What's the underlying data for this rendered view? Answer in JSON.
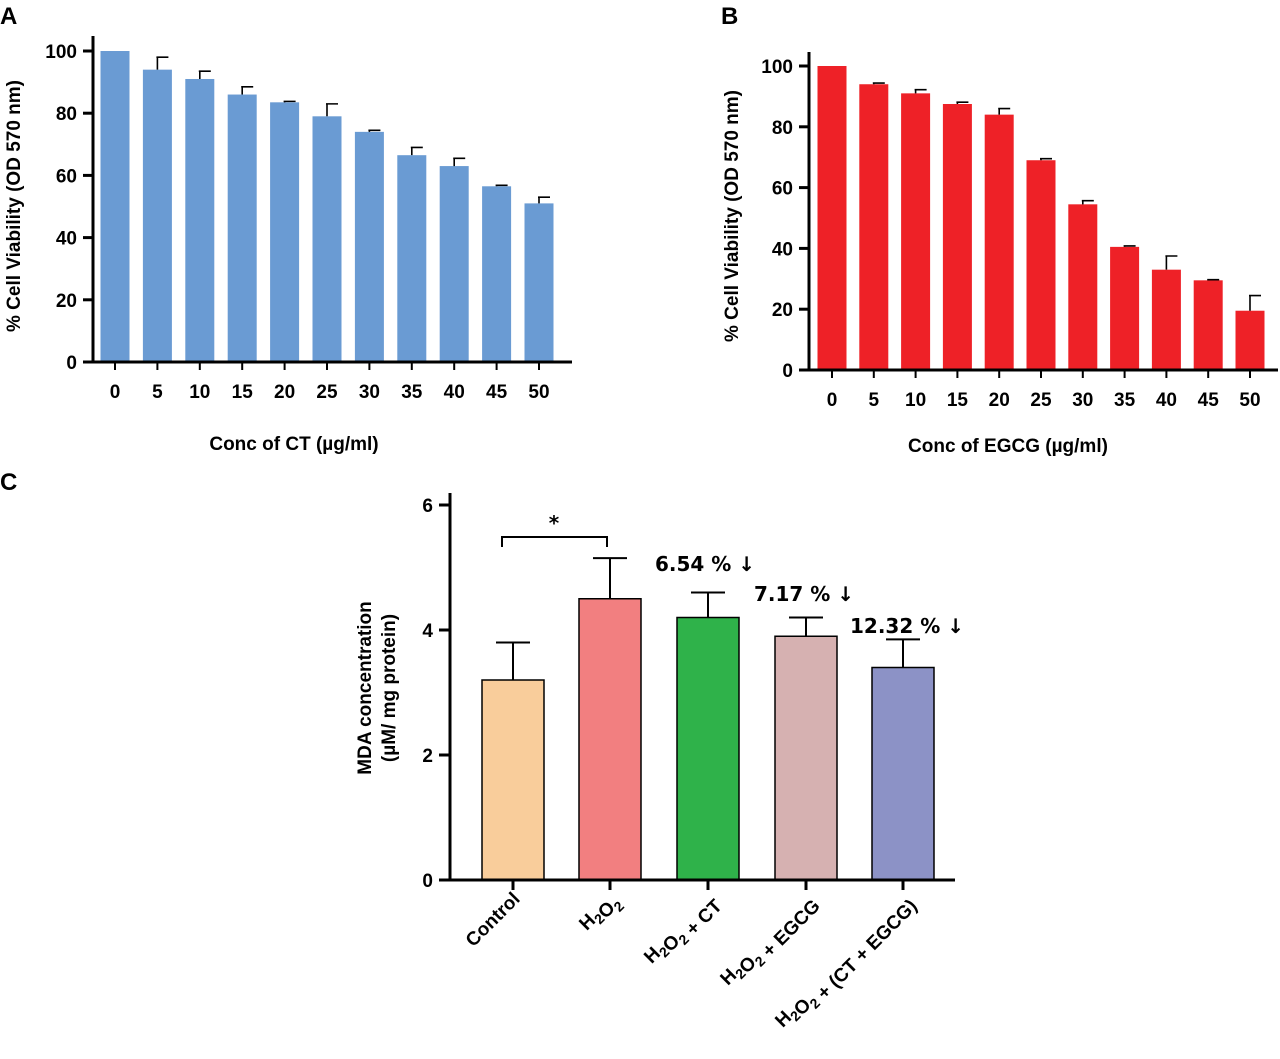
{
  "chart_data": [
    {
      "panel": "A",
      "type": "bar",
      "categories": [
        "0",
        "5",
        "10",
        "15",
        "20",
        "25",
        "30",
        "35",
        "40",
        "45",
        "50"
      ],
      "values": [
        100,
        94,
        91,
        86,
        83.5,
        79,
        74,
        66.5,
        63,
        56.5,
        51
      ],
      "errors": [
        0,
        4,
        2.5,
        2.5,
        0.3,
        4,
        0.5,
        2.5,
        2.5,
        0.3,
        2
      ],
      "xlabel": "Conc of CT (µg/ml)",
      "ylabel": "% Cell Viability (OD 570 nm)",
      "ylim": [
        0,
        100
      ],
      "yticks": [
        "0",
        "20",
        "40",
        "60",
        "80",
        "100"
      ],
      "color": "#6a9bd3"
    },
    {
      "panel": "B",
      "type": "bar",
      "categories": [
        "0",
        "5",
        "10",
        "15",
        "20",
        "25",
        "30",
        "35",
        "40",
        "45",
        "50"
      ],
      "values": [
        100,
        94,
        91,
        87.5,
        84,
        69,
        54.5,
        40.5,
        33,
        29.5,
        19.5
      ],
      "errors": [
        0,
        0.4,
        1.2,
        0.6,
        2,
        0.5,
        1.2,
        0.3,
        4.5,
        0.2,
        5
      ],
      "xlabel": "Conc of EGCG (µg/ml)",
      "ylabel": "% Cell Viability (OD 570 nm)",
      "ylim": [
        0,
        100
      ],
      "yticks": [
        "0",
        "20",
        "40",
        "60",
        "80",
        "100"
      ],
      "color": "#ee2127"
    },
    {
      "panel": "C",
      "type": "bar",
      "categories": [
        "Control",
        "H2O2",
        "H2O2 + CT",
        "H2O2 + EGCG",
        "H2O2 + (CT + EGCG)"
      ],
      "values": [
        3.2,
        4.5,
        4.2,
        3.9,
        3.4
      ],
      "errors": [
        0.6,
        0.65,
        0.4,
        0.3,
        0.45
      ],
      "colors": [
        "#f9cd9b",
        "#f27f80",
        "#2fb24a",
        "#d6b1b1",
        "#8c92c6"
      ],
      "ylabel_line1": "MDA concentration",
      "ylabel_line2": "(µM/ mg protein)",
      "ylim": [
        0,
        6
      ],
      "yticks": [
        "0",
        "2",
        "4",
        "6"
      ],
      "significance": "*",
      "annotations": [
        "6.54 % ↓",
        "7.17 % ↓",
        "12.32 % ↓"
      ]
    }
  ]
}
